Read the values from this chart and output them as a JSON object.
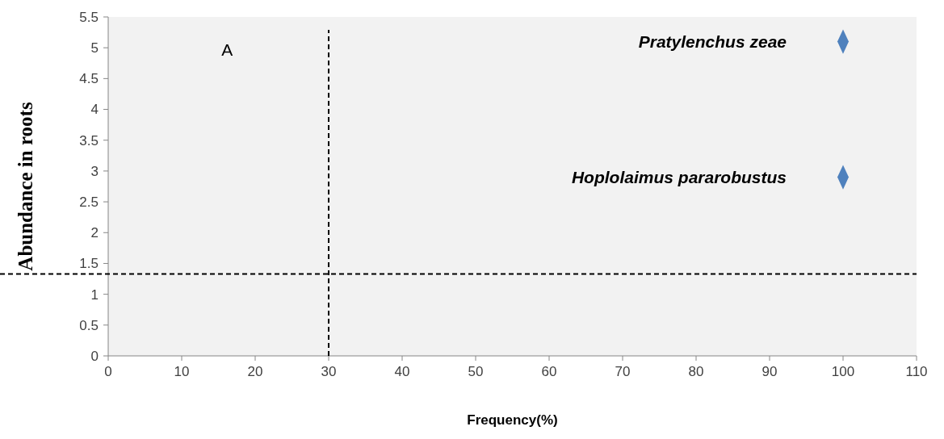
{
  "chart_data": {
    "type": "scatter",
    "xlabel": "Frequency(%)",
    "ylabel": "Abundance in roots",
    "marker": "diamond",
    "grid": false,
    "series": [
      {
        "name": "Pratylenchus zeae",
        "color": "#4f81bd",
        "x": [
          100
        ],
        "values": [
          5.1
        ]
      },
      {
        "name": "Hoplolaimus pararobustus",
        "color": "#4f81bd",
        "x": [
          100
        ],
        "values": [
          2.9
        ]
      }
    ],
    "xlim": [
      0,
      110
    ],
    "xticks": [
      0,
      10,
      20,
      30,
      40,
      50,
      60,
      70,
      80,
      90,
      100,
      110
    ],
    "ylim": [
      0,
      5.5
    ],
    "yticks": [
      0,
      0.5,
      1,
      1.5,
      2,
      2.5,
      3,
      3.5,
      4,
      4.5,
      5,
      5.5
    ],
    "ref_lines": [
      {
        "axis": "x",
        "value": 30,
        "line_style": "dashed",
        "color": "#000000"
      },
      {
        "axis": "y",
        "value": 1.33,
        "line_style": "dashed",
        "color": "#000000"
      }
    ],
    "annotations": [
      "A"
    ]
  }
}
